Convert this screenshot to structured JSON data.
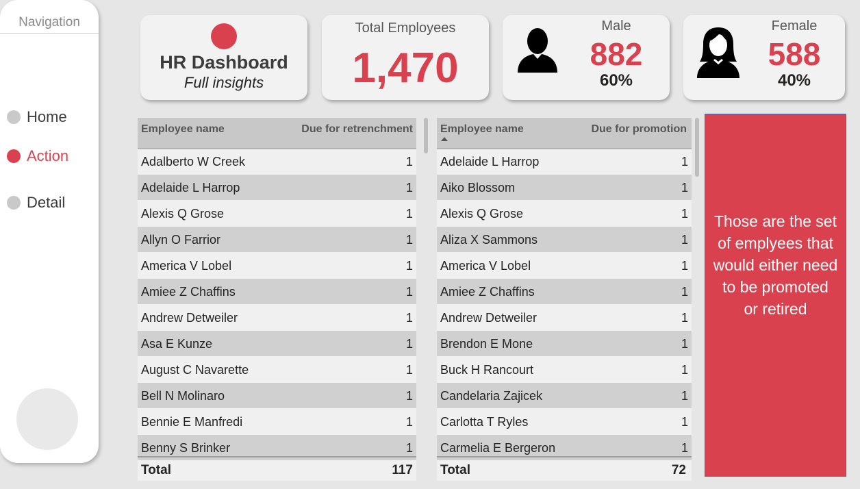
{
  "navigation": {
    "title": "Navigation",
    "items": [
      {
        "label": "Home",
        "active": false
      },
      {
        "label": "Action",
        "active": true
      },
      {
        "label": "Detail",
        "active": false
      }
    ]
  },
  "header": {
    "title": "HR Dashboard",
    "subtitle": "Full insights"
  },
  "kpis": {
    "total": {
      "label": "Total Employees",
      "value": "1,470"
    },
    "male": {
      "label": "Male",
      "value": "882",
      "percent": "60%",
      "icon": "male-user-icon"
    },
    "female": {
      "label": "Female",
      "value": "588",
      "percent": "40%",
      "icon": "female-user-icon"
    }
  },
  "retrenchment_table": {
    "col_name": "Employee name",
    "col_value": "Due for retrenchment",
    "rows": [
      {
        "name": "Adalberto W Creek",
        "value": "1"
      },
      {
        "name": "Adelaide L Harrop",
        "value": "1"
      },
      {
        "name": "Alexis Q Grose",
        "value": "1"
      },
      {
        "name": "Allyn O Farrior",
        "value": "1"
      },
      {
        "name": "America V Lobel",
        "value": "1"
      },
      {
        "name": "Amiee Z Chaffins",
        "value": "1"
      },
      {
        "name": "Andrew Detweiler",
        "value": "1"
      },
      {
        "name": "Asa E Kunze",
        "value": "1"
      },
      {
        "name": "August C Navarette",
        "value": "1"
      },
      {
        "name": "Bell N Molinaro",
        "value": "1"
      },
      {
        "name": "Bennie E Manfredi",
        "value": "1"
      },
      {
        "name": "Benny S Brinker",
        "value": "1"
      }
    ],
    "total_label": "Total",
    "total_value": "117"
  },
  "promotion_table": {
    "col_name": "Employee name",
    "col_value": "Due for promotion",
    "rows": [
      {
        "name": "Adelaide L Harrop",
        "value": "1"
      },
      {
        "name": "Aiko Blossom",
        "value": "1"
      },
      {
        "name": "Alexis Q Grose",
        "value": "1"
      },
      {
        "name": "Aliza X Sammons",
        "value": "1"
      },
      {
        "name": "America V Lobel",
        "value": "1"
      },
      {
        "name": "Amiee Z Chaffins",
        "value": "1"
      },
      {
        "name": "Andrew Detweiler",
        "value": "1"
      },
      {
        "name": "Brendon E Mone",
        "value": "1"
      },
      {
        "name": "Buck H Rancourt",
        "value": "1"
      },
      {
        "name": "Candelaria Zajicek",
        "value": "1"
      },
      {
        "name": "Carlotta T Ryles",
        "value": "1"
      },
      {
        "name": "Carmelia E Bergeron",
        "value": "1"
      }
    ],
    "total_label": "Total",
    "total_value": "72"
  },
  "note": {
    "lines": [
      "Those are the set",
      "of emplyees that",
      "would either need",
      "to be promoted",
      "or retired"
    ]
  },
  "colors": {
    "accent": "#d9414e",
    "background": "#e6e6e6",
    "card": "#f2f2f2"
  }
}
